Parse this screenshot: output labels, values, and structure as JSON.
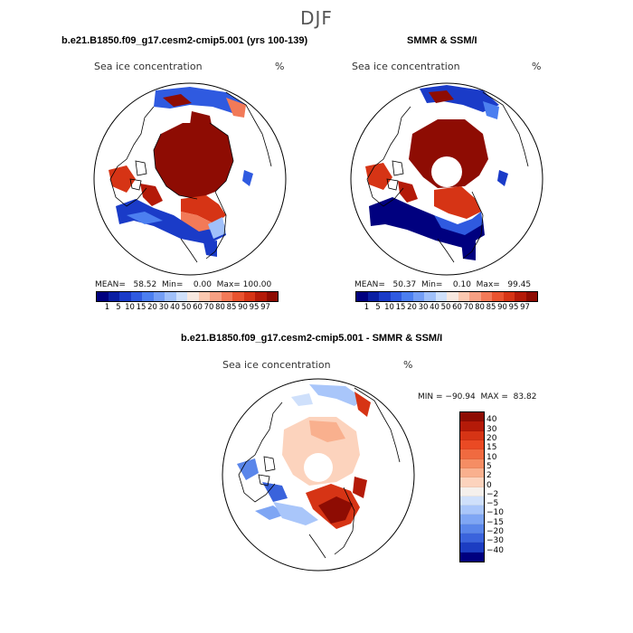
{
  "season": "DJF",
  "panels": {
    "model": {
      "title": "b.e21.B1850.f09_g17.cesm2-cmip5.001 (yrs 100-139)",
      "variable": "Sea ice concentration",
      "units": "%",
      "stats": "MEAN=   58.52  Min=    0.00  Max= 100.00"
    },
    "obs": {
      "title": "SMMR & SSM/I",
      "variable": "Sea ice concentration",
      "units": "%",
      "stats": "MEAN=   50.37  Min=    0.10  Max=   99.45"
    },
    "diff": {
      "title": "b.e21.B1850.f09_g17.cesm2-cmip5.001 - SMMR & SSM/I",
      "variable": "Sea ice concentration",
      "units": "%",
      "stats": "MIN = −90.94  MAX =  83.82"
    }
  },
  "colorbar_abs": {
    "ticks": [
      "1",
      "5",
      "10",
      "15",
      "20",
      "30",
      "40",
      "50",
      "60",
      "70",
      "80",
      "85",
      "90",
      "95",
      "97"
    ],
    "colors": [
      "#00007f",
      "#0a1fa3",
      "#1a3bc8",
      "#2f5ae0",
      "#4c7ff0",
      "#749ef5",
      "#a0c0fa",
      "#cfe0fb",
      "#f7e8e0",
      "#fbc8b0",
      "#f7a083",
      "#f27a58",
      "#e9532f",
      "#d63415",
      "#b41a08",
      "#8e0c03"
    ]
  },
  "colorbar_diff": {
    "ticks": [
      "40",
      "30",
      "20",
      "15",
      "10",
      "5",
      "2",
      "0",
      "−2",
      "−5",
      "−10",
      "−15",
      "−20",
      "−30",
      "−40"
    ],
    "colors": [
      "#8e0c03",
      "#b41a08",
      "#d63415",
      "#ea4a24",
      "#f06a40",
      "#f58d64",
      "#f9b08e",
      "#fcd3bd",
      "#f5f0ec",
      "#cfe0fb",
      "#a9c6fa",
      "#7fa6f4",
      "#5a86ea",
      "#3a63dc",
      "#1c3dc2",
      "#00007f"
    ]
  }
}
